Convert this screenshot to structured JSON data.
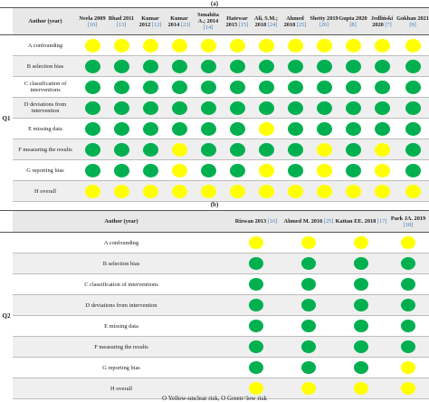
{
  "section_a_label": "(a)",
  "section_b_label": "(b)",
  "colors": {
    "yellow": "#ffff00",
    "green": "#00b050"
  },
  "q1": {
    "label": "Q1",
    "header_label": "Author (year)",
    "studies": [
      {
        "name": "Neela 2009",
        "ref": "[10]"
      },
      {
        "name": "Bhad 2011",
        "ref": "[13]"
      },
      {
        "name": "Kumar 2012",
        "ref": "[12]"
      },
      {
        "name": "Kumar 2014",
        "ref": "[23]"
      },
      {
        "name": "Sonahita A.; 2014",
        "ref": "[14]"
      },
      {
        "name": "Hatewar 2015",
        "ref": "[15]"
      },
      {
        "name": "Ali, S.M.; 2018",
        "ref": "[24]"
      },
      {
        "name": "Ahmed 2018",
        "ref": "[25]"
      },
      {
        "name": "Shetty 2019",
        "ref": "[26]"
      },
      {
        "name": "Gupta 2020",
        "ref": "[8]"
      },
      {
        "name": "Jedliński 2020",
        "ref": "[7]"
      },
      {
        "name": "Gokhan 2021",
        "ref": "[9]"
      }
    ],
    "rows": [
      {
        "domain": "A confounding",
        "ratings": [
          "Y",
          "Y",
          "Y",
          "Y",
          "Y",
          "Y",
          "Y",
          "Y",
          "Y",
          "Y",
          "Y",
          "Y"
        ]
      },
      {
        "domain": "B selection bias",
        "ratings": [
          "G",
          "G",
          "G",
          "G",
          "G",
          "G",
          "G",
          "G",
          "G",
          "G",
          "G",
          "G"
        ]
      },
      {
        "domain": "C classification of interventions",
        "ratings": [
          "G",
          "G",
          "G",
          "G",
          "G",
          "G",
          "G",
          "G",
          "G",
          "G",
          "G",
          "G"
        ]
      },
      {
        "domain": "D deviations from intervention",
        "ratings": [
          "G",
          "G",
          "G",
          "G",
          "G",
          "G",
          "G",
          "G",
          "G",
          "G",
          "G",
          "G"
        ]
      },
      {
        "domain": "E missing data",
        "ratings": [
          "G",
          "G",
          "G",
          "G",
          "G",
          "G",
          "Y",
          "G",
          "G",
          "G",
          "G",
          "G"
        ]
      },
      {
        "domain": "F measuring the results",
        "ratings": [
          "G",
          "G",
          "G",
          "Y",
          "G",
          "G",
          "G",
          "G",
          "Y",
          "G",
          "Y",
          "G"
        ]
      },
      {
        "domain": "G reporting bias",
        "ratings": [
          "G",
          "G",
          "G",
          "Y",
          "G",
          "G",
          "Y",
          "G",
          "Y",
          "G",
          "Y",
          "G"
        ]
      },
      {
        "domain": "H overall",
        "ratings": [
          "Y",
          "Y",
          "Y",
          "Y",
          "Y",
          "Y",
          "Y",
          "Y",
          "Y",
          "Y",
          "Y",
          "Y"
        ]
      }
    ]
  },
  "q2": {
    "label": "Q2",
    "header_label": "Author (year)",
    "studies": [
      {
        "name": "Rizwan 2013",
        "ref": "[16]"
      },
      {
        "name": "Ahmed M. 2016",
        "ref": "[25]"
      },
      {
        "name": "Kattan EE. 2018",
        "ref": "[17]"
      },
      {
        "name": "Park JA. 2019",
        "ref": "[18]"
      }
    ],
    "rows": [
      {
        "domain": "A confounding",
        "ratings": [
          "Y",
          "Y",
          "Y",
          "Y"
        ]
      },
      {
        "domain": "B selection bias",
        "ratings": [
          "G",
          "G",
          "G",
          "G"
        ]
      },
      {
        "domain": "C classification of interventions",
        "ratings": [
          "G",
          "G",
          "G",
          "G"
        ]
      },
      {
        "domain": "D deviations from intervention",
        "ratings": [
          "G",
          "G",
          "G",
          "G"
        ]
      },
      {
        "domain": "E missing data",
        "ratings": [
          "G",
          "G",
          "G",
          "G"
        ]
      },
      {
        "domain": "F measuring the results",
        "ratings": [
          "G",
          "G",
          "G",
          "G"
        ]
      },
      {
        "domain": "G reporting bias",
        "ratings": [
          "G",
          "G",
          "G",
          "Y"
        ]
      },
      {
        "domain": "H overall",
        "ratings": [
          "Y",
          "Y",
          "Y",
          "Y"
        ]
      }
    ]
  },
  "legend_text": "O Yellow-unclear risk, O Green=low risk"
}
